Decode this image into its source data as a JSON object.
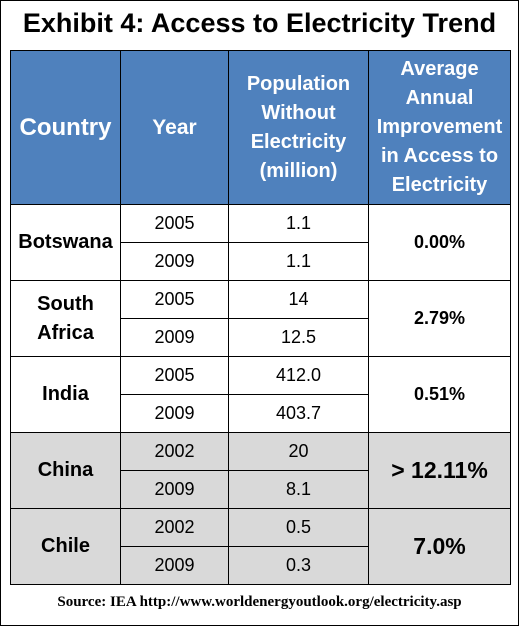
{
  "title": "Exhibit 4: Access to Electricity Trend",
  "headers": {
    "country": "Country",
    "year": "Year",
    "population_lines": [
      "Population",
      "Without",
      "Electricity",
      "(million)"
    ],
    "improvement_lines": [
      "Average",
      "Annual",
      "Improvement",
      "in Access to",
      "Electricity"
    ]
  },
  "rows": [
    {
      "country_lines": [
        "Botswana"
      ],
      "years": [
        "2005",
        "2009"
      ],
      "population": [
        "1.1",
        "1.1"
      ],
      "improvement": "0.00%"
    },
    {
      "country_lines": [
        "South",
        "Africa"
      ],
      "years": [
        "2005",
        "2009"
      ],
      "population": [
        "14",
        "12.5"
      ],
      "improvement": "2.79%"
    },
    {
      "country_lines": [
        "India"
      ],
      "years": [
        "2005",
        "2009"
      ],
      "population": [
        "412.0",
        "403.7"
      ],
      "improvement": "0.51%"
    },
    {
      "country_lines": [
        "China"
      ],
      "years": [
        "2002",
        "2009"
      ],
      "population": [
        "20",
        "8.1"
      ],
      "improvement": "> 12.11%"
    },
    {
      "country_lines": [
        "Chile"
      ],
      "years": [
        "2002",
        "2009"
      ],
      "population": [
        "0.5",
        "0.3"
      ],
      "improvement": "7.0%"
    }
  ],
  "source": "Source: IEA http://www.worldenergyoutlook.org/electricity.asp",
  "colors": {
    "header_bg": "#4f81bd",
    "header_text": "#ffffff",
    "shaded_rows": "#d9d9d9"
  },
  "chart_data": {
    "type": "table",
    "title": "Exhibit 4: Access to Electricity Trend",
    "columns": [
      "Country",
      "Year",
      "Population Without Electricity (million)",
      "Average Annual Improvement in Access to Electricity"
    ],
    "records": [
      {
        "country": "Botswana",
        "year": 2005,
        "population_without_electricity_million": 1.1,
        "avg_annual_improvement": "0.00%"
      },
      {
        "country": "Botswana",
        "year": 2009,
        "population_without_electricity_million": 1.1,
        "avg_annual_improvement": "0.00%"
      },
      {
        "country": "South Africa",
        "year": 2005,
        "population_without_electricity_million": 14,
        "avg_annual_improvement": "2.79%"
      },
      {
        "country": "South Africa",
        "year": 2009,
        "population_without_electricity_million": 12.5,
        "avg_annual_improvement": "2.79%"
      },
      {
        "country": "India",
        "year": 2005,
        "population_without_electricity_million": 412.0,
        "avg_annual_improvement": "0.51%"
      },
      {
        "country": "India",
        "year": 2009,
        "population_without_electricity_million": 403.7,
        "avg_annual_improvement": "0.51%"
      },
      {
        "country": "China",
        "year": 2002,
        "population_without_electricity_million": 20,
        "avg_annual_improvement": "> 12.11%"
      },
      {
        "country": "China",
        "year": 2009,
        "population_without_electricity_million": 8.1,
        "avg_annual_improvement": "> 12.11%"
      },
      {
        "country": "Chile",
        "year": 2002,
        "population_without_electricity_million": 0.5,
        "avg_annual_improvement": "7.0%"
      },
      {
        "country": "Chile",
        "year": 2009,
        "population_without_electricity_million": 0.3,
        "avg_annual_improvement": "7.0%"
      }
    ],
    "shaded_countries": [
      "China",
      "Chile"
    ]
  }
}
